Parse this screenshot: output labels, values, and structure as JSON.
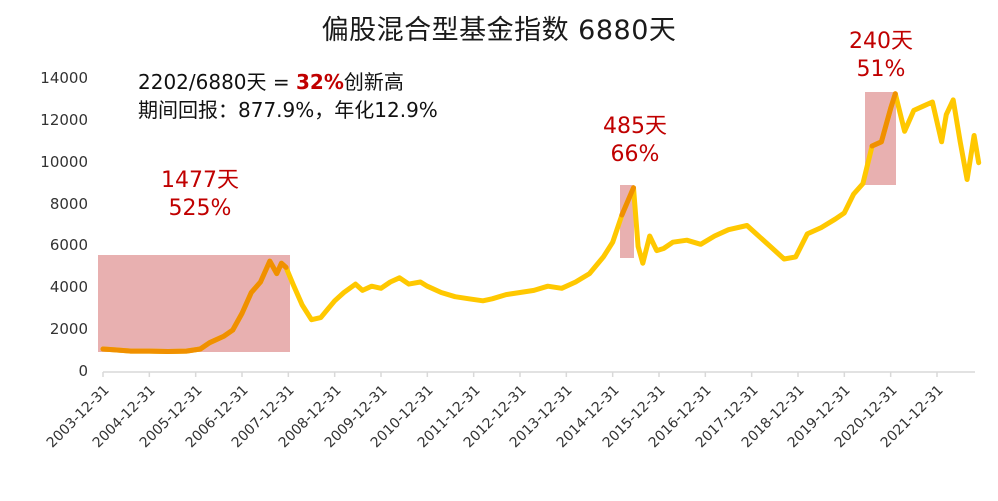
{
  "title": "偏股混合型基金指数 6880天",
  "annotation": {
    "line1_prefix": "2202/6880天 = ",
    "line1_highlight": "32%",
    "line1_suffix": "创新高",
    "line2": "期间回报：877.9%，年化12.9%"
  },
  "peaks": [
    {
      "days": "1477天",
      "pct": "525%"
    },
    {
      "days": "485天",
      "pct": "66%"
    },
    {
      "days": "240天",
      "pct": "51%"
    }
  ],
  "colors": {
    "line": "#ffc800",
    "highlight_line": "#f09000",
    "shade": "#e8b0b0",
    "accent": "#c00000",
    "axis": "#d9d9d9"
  },
  "chart_data": {
    "type": "line",
    "title": "偏股混合型基金指数 6880天",
    "xlabel": "",
    "ylabel": "",
    "ylim": [
      0,
      14000
    ],
    "yticks": [
      "0",
      "2000",
      "4000",
      "6000",
      "8000",
      "10000",
      "12000",
      "14000"
    ],
    "xticks": [
      "2003-12-31",
      "2004-12-31",
      "2005-12-31",
      "2006-12-31",
      "2007-12-31",
      "2008-12-31",
      "2009-12-31",
      "2010-12-31",
      "2011-12-31",
      "2012-12-31",
      "2013-12-31",
      "2014-12-31",
      "2015-12-31",
      "2016-12-31",
      "2017-12-31",
      "2018-12-31",
      "2019-12-31",
      "2020-12-31",
      "2021-12-31"
    ],
    "grid": false,
    "legend": "none",
    "series": [
      {
        "name": "偏股混合型基金指数",
        "x": [
          2004.0,
          2004.3,
          2004.6,
          2005.0,
          2005.4,
          2005.8,
          2006.1,
          2006.3,
          2006.6,
          2006.8,
          2007.0,
          2007.2,
          2007.4,
          2007.6,
          2007.75,
          2007.85,
          2007.95,
          2008.1,
          2008.3,
          2008.5,
          2008.7,
          2008.85,
          2009.0,
          2009.2,
          2009.45,
          2009.6,
          2009.8,
          2010.0,
          2010.2,
          2010.4,
          2010.6,
          2010.85,
          2011.0,
          2011.3,
          2011.6,
          2011.9,
          2012.2,
          2012.4,
          2012.7,
          2013.0,
          2013.3,
          2013.6,
          2013.9,
          2014.2,
          2014.5,
          2014.8,
          2015.0,
          2015.2,
          2015.45,
          2015.55,
          2015.65,
          2015.8,
          2015.95,
          2016.1,
          2016.3,
          2016.6,
          2016.9,
          2017.2,
          2017.5,
          2017.9,
          2018.1,
          2018.4,
          2018.7,
          2018.95,
          2019.2,
          2019.5,
          2019.8,
          2020.0,
          2020.2,
          2020.4,
          2020.6,
          2020.8,
          2021.0,
          2021.1,
          2021.3,
          2021.5,
          2021.7,
          2021.9,
          2022.1,
          2022.2,
          2022.35,
          2022.5,
          2022.65,
          2022.8,
          2022.9
        ],
        "values": [
          1100,
          1050,
          1000,
          1000,
          980,
          1000,
          1100,
          1400,
          1700,
          2000,
          2800,
          3800,
          4300,
          5300,
          4700,
          5200,
          5000,
          4200,
          3200,
          2500,
          2600,
          3000,
          3400,
          3800,
          4200,
          3900,
          4100,
          4000,
          4300,
          4500,
          4200,
          4300,
          4100,
          3800,
          3600,
          3500,
          3400,
          3500,
          3700,
          3800,
          3900,
          4100,
          4000,
          4300,
          4700,
          5500,
          6200,
          7500,
          8800,
          6000,
          5200,
          6500,
          5800,
          5900,
          6200,
          6300,
          6100,
          6500,
          6800,
          7000,
          6600,
          6000,
          5400,
          5500,
          6600,
          6900,
          7300,
          7600,
          8500,
          9000,
          10800,
          11000,
          12600,
          13300,
          11500,
          12500,
          12700,
          12900,
          11000,
          12300,
          13000,
          11000,
          9200,
          11300,
          10000
        ],
        "highlight_ranges": [
          {
            "start": "2003-12-31",
            "end": "2007-12-31",
            "days": 1477,
            "return": "525%"
          },
          {
            "start": "2015-01",
            "end": "2015-06",
            "days": 485,
            "return": "66%"
          },
          {
            "start": "2020-06",
            "end": "2021-02",
            "days": 240,
            "return": "51%"
          }
        ]
      }
    ]
  }
}
